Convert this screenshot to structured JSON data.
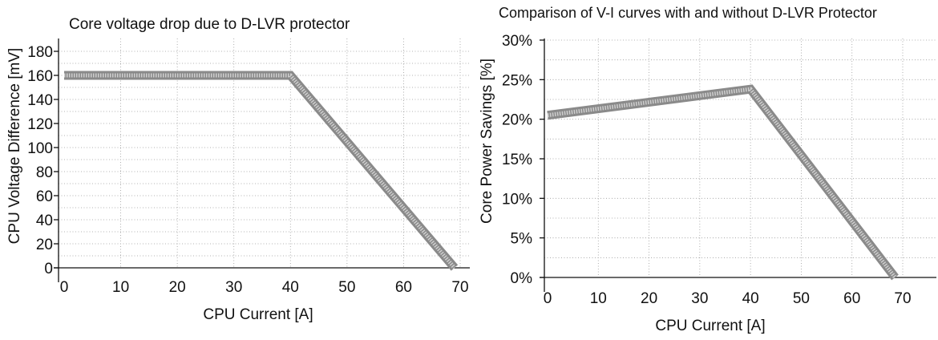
{
  "chart_data": [
    {
      "type": "line",
      "title": "Core voltage drop due to D-LVR protector",
      "xlabel": "CPU Current [A]",
      "ylabel": "CPU Voltage Difference [mV]",
      "xlim": [
        0,
        70
      ],
      "ylim": [
        0,
        180
      ],
      "xticks": [
        0,
        10,
        20,
        30,
        40,
        50,
        60,
        70
      ],
      "yticks": [
        0,
        20,
        40,
        60,
        80,
        100,
        120,
        140,
        160,
        180
      ],
      "grid": true,
      "series": [
        {
          "x": [
            0,
            40,
            69
          ],
          "y": [
            160,
            160,
            0
          ]
        }
      ]
    },
    {
      "type": "line",
      "title": "Comparison of V-I curves with and without D-LVR Protector",
      "xlabel": "CPU Current [A]",
      "ylabel": "Core Power Savings [%]",
      "xlim": [
        0,
        70
      ],
      "ylim": [
        0,
        30
      ],
      "xticks": [
        0,
        10,
        20,
        30,
        40,
        50,
        60,
        70
      ],
      "yticks": [
        "0%",
        "5%",
        "10%",
        "15%",
        "20%",
        "25%",
        "30%"
      ],
      "grid": true,
      "series": [
        {
          "x": [
            0,
            40,
            68.5
          ],
          "y": [
            20.5,
            23.8,
            0
          ]
        }
      ]
    }
  ]
}
